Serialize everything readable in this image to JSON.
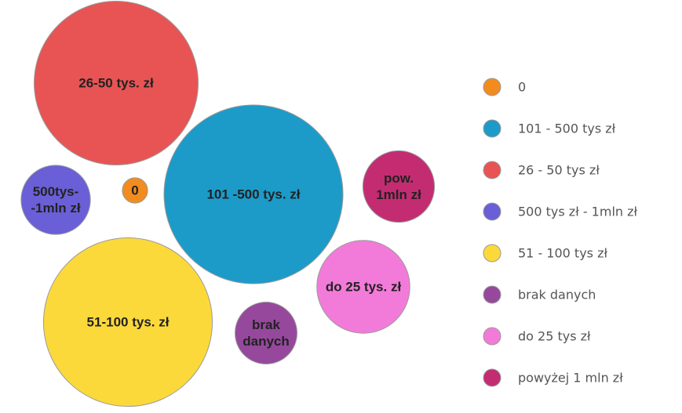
{
  "chart_data": {
    "type": "bubble",
    "title": "",
    "bubbles": [
      {
        "category": "26 - 50 tys zł",
        "label_lines": [
          "26-50 tys. zł"
        ],
        "value": 84,
        "color": "#e85454"
      },
      {
        "category": "101 - 500 tys zł",
        "label_lines": [
          "101 -500 tys. zł"
        ],
        "value": 100,
        "color": "#1c9bc9"
      },
      {
        "category": "500 tys zł - 1mln zł",
        "label_lines": [
          "500tys-",
          "-1mln zł"
        ],
        "value": 15,
        "color": "#6a5fd6"
      },
      {
        "category": "0",
        "label_lines": [
          "0"
        ],
        "value": 2,
        "color": "#f28c1e"
      },
      {
        "category": "powyżej 1 mln zł",
        "label_lines": [
          "pow.",
          "1mln zł"
        ],
        "value": 16,
        "color": "#c42c72"
      },
      {
        "category": "do 25 tys zł",
        "label_lines": [
          "do 25 tys. zł"
        ],
        "value": 27,
        "color": "#f27bd9"
      },
      {
        "category": "51 - 100 tys zł",
        "label_lines": [
          "51-100 tys. zł"
        ],
        "value": 89,
        "color": "#fcd93a"
      },
      {
        "category": "brak danych",
        "label_lines": [
          "brak",
          "danych"
        ],
        "value": 12,
        "color": "#96499c"
      }
    ],
    "legend": {
      "placement": "right",
      "items": [
        {
          "label": "0",
          "color": "#f28c1e"
        },
        {
          "label": "101 - 500 tys zł",
          "color": "#1c9bc9"
        },
        {
          "label": "26 - 50 tys zł",
          "color": "#e85454"
        },
        {
          "label": "500 tys zł - 1mln zł",
          "color": "#6a5fd6"
        },
        {
          "label": "51 - 100 tys zł",
          "color": "#fcd93a"
        },
        {
          "label": "brak danych",
          "color": "#96499c"
        },
        {
          "label": "do 25 tys zł",
          "color": "#f27bd9"
        },
        {
          "label": "powyżej 1 mln zł",
          "color": "#c42c72"
        }
      ]
    }
  }
}
